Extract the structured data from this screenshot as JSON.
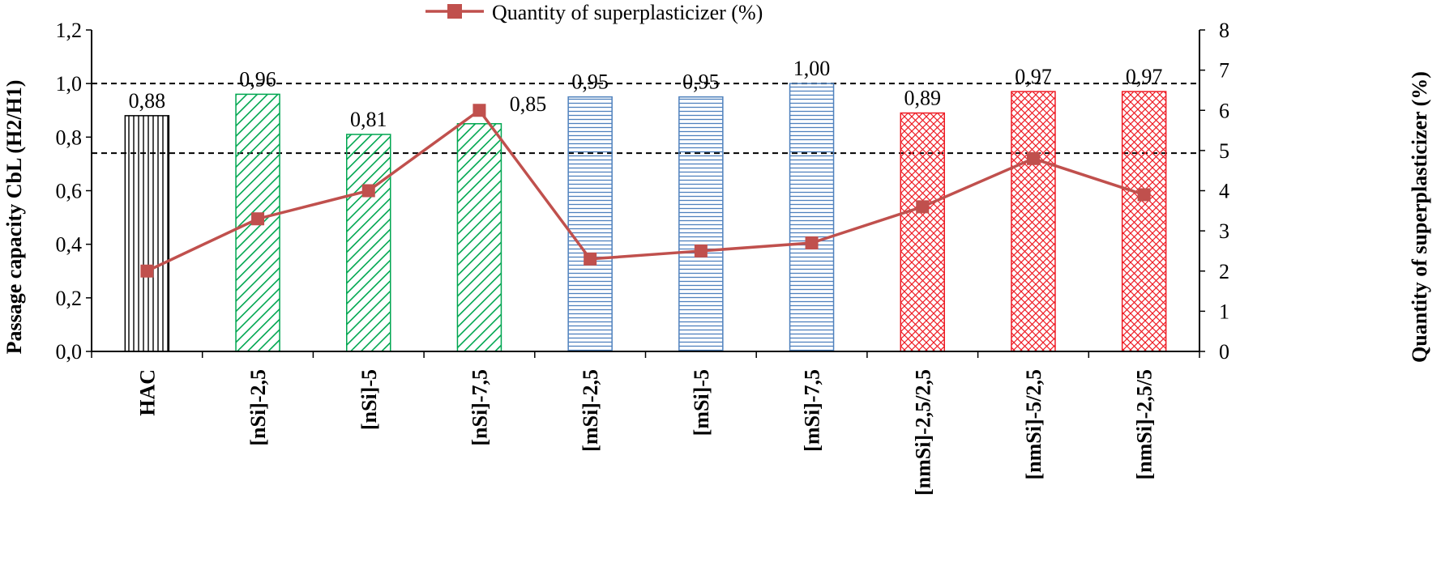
{
  "chart_data": {
    "type": "bar",
    "title": "",
    "categories": [
      "HAC",
      "[nSi]-2,5",
      "[nSi]-5",
      "[nSi]-7,5",
      "[mSi]-2,5",
      "[mSi]-5",
      "[mSi]-7,5",
      "[nmSi]-2,5/2,5",
      "[nmSi]-5/2,5",
      "[nmSi]-2,5/5"
    ],
    "bar_series": {
      "name": "",
      "values": [
        0.88,
        0.96,
        0.81,
        0.85,
        0.95,
        0.95,
        1.0,
        0.89,
        0.97,
        0.97
      ],
      "labels": [
        "0,88",
        "0,96",
        "0,81",
        "0,85",
        "0,95",
        "0,95",
        "1,00",
        "0,89",
        "0,97",
        "0,97"
      ],
      "patterns": [
        "vertical",
        "diagonal",
        "diagonal",
        "diagonal",
        "horizontal",
        "horizontal",
        "horizontal",
        "crosshatch",
        "crosshatch",
        "crosshatch"
      ],
      "colors": [
        "#000000",
        "#00a650",
        "#00a650",
        "#00a650",
        "#4f81bd",
        "#4f81bd",
        "#4f81bd",
        "#ee1c25",
        "#ee1c25",
        "#ee1c25"
      ]
    },
    "line_series": {
      "name": "Quantity of superplasticizer (%)",
      "values": [
        2.0,
        3.3,
        4.0,
        6.0,
        2.3,
        2.5,
        2.7,
        3.6,
        4.8,
        3.9
      ],
      "color": "#c0504d",
      "axis": "right"
    },
    "y_left": {
      "label": "Passage capacity CbL (H2/H1)",
      "ylim": [
        0,
        1.2
      ],
      "ticks": [
        0,
        0.2,
        0.4,
        0.6,
        0.8,
        1.0,
        1.2
      ],
      "tick_labels": [
        "0,0",
        "0,2",
        "0,4",
        "0,6",
        "0,8",
        "1,0",
        "1,2"
      ]
    },
    "y_right": {
      "label": "Quantity of superplasticizer  (%)",
      "ylim": [
        0,
        8
      ],
      "ticks": [
        0,
        1,
        2,
        3,
        4,
        5,
        6,
        7,
        8
      ],
      "tick_labels": [
        "0",
        "1",
        "2",
        "3",
        "4",
        "5",
        "6",
        "7",
        "8"
      ]
    },
    "reference_lines_left_axis": [
      1.0,
      0.74
    ],
    "legend": {
      "placement": "top-center",
      "entries": [
        "Quantity of superplasticizer (%)"
      ]
    },
    "grid": false
  }
}
